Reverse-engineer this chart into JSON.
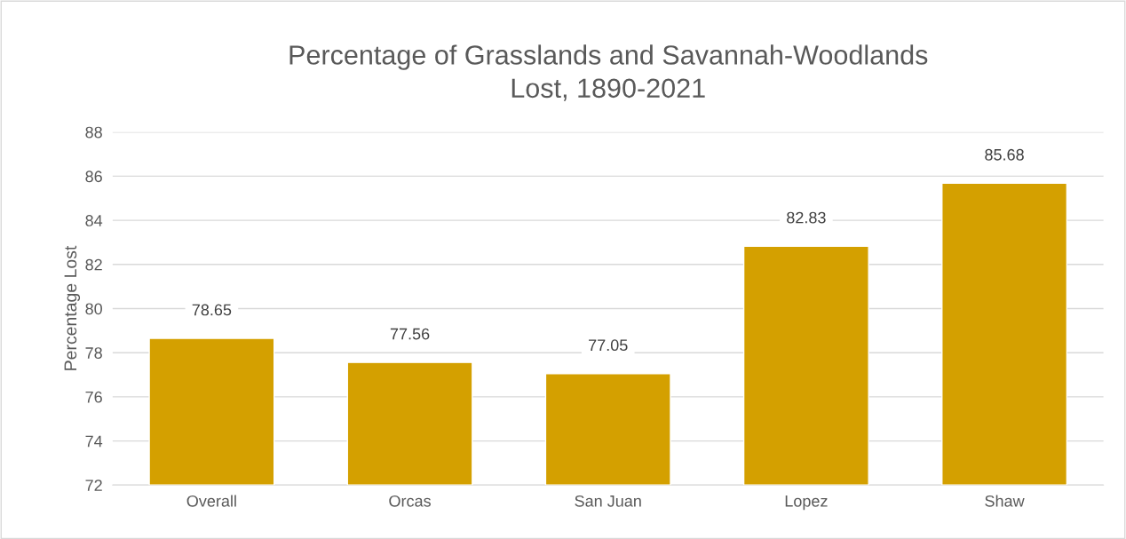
{
  "chart_data": {
    "type": "bar",
    "title": "Percentage of Grasslands and Savannah-Woodlands\nLost, 1890-2021",
    "ylabel": "Percentage Lost",
    "categories": [
      "Overall",
      "Orcas",
      "San Juan",
      "Lopez",
      "Shaw"
    ],
    "values": [
      78.65,
      77.56,
      77.05,
      82.83,
      85.68
    ],
    "color": "#d4a000",
    "ylim": [
      72,
      88
    ],
    "yticks": [
      72,
      74,
      76,
      78,
      80,
      82,
      84,
      86,
      88
    ],
    "grid": "y",
    "data_labels": true
  }
}
